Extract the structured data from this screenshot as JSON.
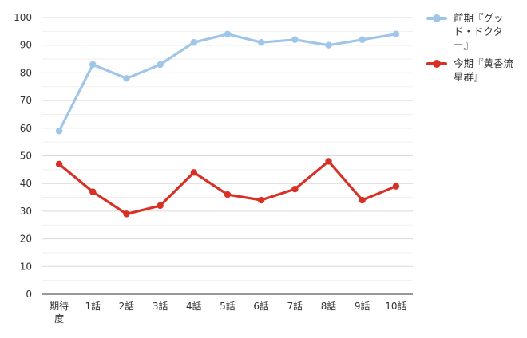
{
  "chart_data": {
    "type": "line",
    "categories": [
      "期待度",
      "1話",
      "2話",
      "3話",
      "4話",
      "5話",
      "6話",
      "7話",
      "8話",
      "9話",
      "10話"
    ],
    "category_lines": [
      [
        "期待",
        "度"
      ],
      [
        "1話"
      ],
      [
        "2話"
      ],
      [
        "3話"
      ],
      [
        "4話"
      ],
      [
        "5話"
      ],
      [
        "6話"
      ],
      [
        "7話"
      ],
      [
        "8話"
      ],
      [
        "9話"
      ],
      [
        "10話"
      ]
    ],
    "series": [
      {
        "name": "前期『グッド・ドクター』",
        "legend_lines": [
          "前期『グッ",
          "ド・ドクタ",
          "ー』"
        ],
        "color": "#9fc5e8",
        "values": [
          59,
          83,
          78,
          83,
          91,
          94,
          91,
          92,
          90,
          92,
          94
        ]
      },
      {
        "name": "今期『黄香流星群』",
        "legend_lines": [
          "今期『黄香流",
          "星群』"
        ],
        "color": "#d93025",
        "values": [
          47,
          37,
          29,
          32,
          44,
          36,
          34,
          38,
          48,
          34,
          39
        ]
      }
    ],
    "ylim": [
      0,
      100
    ],
    "yticks": [
      0,
      10,
      20,
      30,
      40,
      50,
      60,
      70,
      80,
      90,
      100
    ],
    "grid": true,
    "legend_position": "right",
    "title": "",
    "xlabel": "",
    "ylabel": ""
  }
}
